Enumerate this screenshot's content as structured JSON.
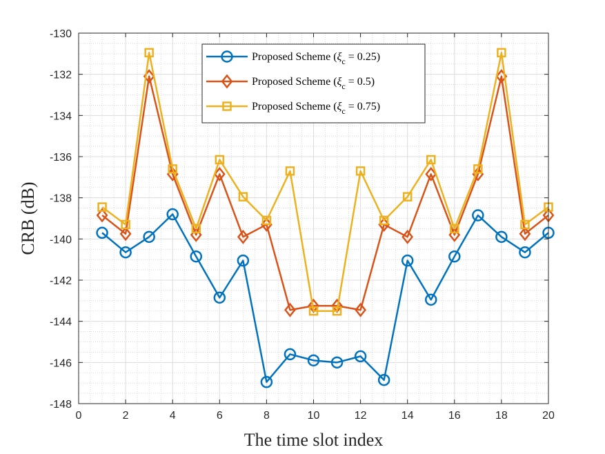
{
  "chart_data": {
    "type": "line",
    "title": "",
    "xlabel": "The time slot index",
    "ylabel": "CRB (dB)",
    "xlim": [
      0,
      20
    ],
    "ylim": [
      -148,
      -130
    ],
    "xticks": [
      0,
      2,
      4,
      6,
      8,
      10,
      12,
      14,
      16,
      18,
      20
    ],
    "yticks": [
      -148,
      -146,
      -144,
      -142,
      -140,
      -138,
      -136,
      -134,
      -132,
      -130
    ],
    "grid": true,
    "minor_grid": true,
    "legend_position": "top-center",
    "x": [
      1,
      2,
      3,
      4,
      5,
      6,
      7,
      8,
      9,
      10,
      11,
      12,
      13,
      14,
      15,
      16,
      17,
      18,
      19,
      20
    ],
    "series": [
      {
        "name": "Proposed Scheme (ξc = 0.25)",
        "legend_prefix": "Proposed Scheme (",
        "legend_symbol": "ξ",
        "legend_sub": "c",
        "legend_suffix": " = 0.25)",
        "color": "#0072BD",
        "marker": "circle",
        "values": [
          -139.7,
          -140.65,
          -139.9,
          -138.8,
          -140.85,
          -142.85,
          -141.05,
          -146.95,
          -145.6,
          -145.9,
          -146.0,
          -145.7,
          -146.85,
          -141.05,
          -142.95,
          -140.85,
          -138.85,
          -139.9,
          -140.65,
          -139.7
        ]
      },
      {
        "name": "Proposed Scheme (ξc = 0.5)",
        "legend_prefix": "Proposed Scheme (",
        "legend_symbol": "ξ",
        "legend_sub": "c",
        "legend_suffix": " = 0.5)",
        "color": "#D95319",
        "marker": "diamond",
        "values": [
          -138.85,
          -139.75,
          -132.1,
          -136.85,
          -139.8,
          -136.85,
          -139.9,
          -139.3,
          -143.45,
          -143.25,
          -143.25,
          -143.45,
          -139.3,
          -139.9,
          -136.85,
          -139.8,
          -136.85,
          -132.1,
          -139.75,
          -138.85
        ]
      },
      {
        "name": "Proposed Scheme (ξc = 0.75)",
        "legend_prefix": "Proposed Scheme (",
        "legend_symbol": "ξ",
        "legend_sub": "c",
        "legend_suffix": " = 0.75)",
        "color": "#EDB120",
        "marker": "square",
        "values": [
          -138.45,
          -139.3,
          -130.95,
          -136.6,
          -139.5,
          -136.15,
          -137.95,
          -139.1,
          -136.7,
          -143.5,
          -143.5,
          -136.7,
          -139.1,
          -137.95,
          -136.15,
          -139.5,
          -136.6,
          -130.95,
          -139.3,
          -138.45
        ]
      }
    ]
  }
}
